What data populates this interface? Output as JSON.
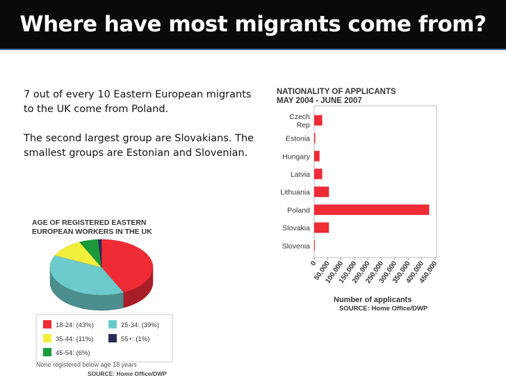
{
  "slide": {
    "title": "Where have most migrants come from?",
    "paragraph1": "7 out of every 10 Eastern European migrants to the UK come from Poland.",
    "paragraph2": "The second largest group are Slovakians. The smallest groups are Estonian and Slovenian."
  },
  "chart_data": [
    {
      "type": "bar",
      "orientation": "horizontal",
      "title": "NATIONALITY OF APPLICANTS",
      "subtitle": "MAY 2004 - JUNE 2007",
      "categories": [
        "Czech Rep",
        "Estonia",
        "Hungary",
        "Latvia",
        "Lithuania",
        "Poland",
        "Slovakia",
        "Slovenia"
      ],
      "category_lines": [
        [
          "Czech",
          "Rep"
        ],
        [
          "Estonia"
        ],
        [
          "Hungary"
        ],
        [
          "Latvia"
        ],
        [
          "Lithuania"
        ],
        [
          "Poland"
        ],
        [
          "Slovakia"
        ],
        [
          "Slovenia"
        ]
      ],
      "values": [
        30000,
        4000,
        20000,
        30000,
        55000,
        428000,
        55000,
        1000
      ],
      "xlabel": "Number of applicants",
      "xlim": [
        0,
        450000
      ],
      "xticks": [
        "0",
        "50,000",
        "100,000",
        "150,000",
        "200,000",
        "250,000",
        "300,000",
        "350,000",
        "400,000",
        "450,000"
      ],
      "source": "SOURCE: Home Office/DWP",
      "color": "#ef2b36",
      "grid": false
    },
    {
      "type": "pie",
      "style": "3d",
      "title": "AGE OF REGISTERED EASTERN EUROPEAN WORKERS IN THE UK",
      "title_lines": [
        "AGE OF REGISTERED EASTERN",
        "EUROPEAN WORKERS IN THE UK"
      ],
      "slices": [
        {
          "label": "18-24: (43%)",
          "value": 43,
          "color": "#ef2b36"
        },
        {
          "label": "25-34: (39%)",
          "value": 39,
          "color": "#6ccaca"
        },
        {
          "label": "35-44: (11%)",
          "value": 11,
          "color": "#f2ee3c"
        },
        {
          "label": "45-54: (6%)",
          "value": 6,
          "color": "#1a9a3a"
        },
        {
          "label": "55+: (1%)",
          "value": 1,
          "color": "#2a2a5a"
        }
      ],
      "legend_order": [
        0,
        1,
        2,
        4,
        3
      ],
      "footnote": "None registered below age 18 years",
      "source": "SOURCE: Home Office/DWP"
    }
  ]
}
